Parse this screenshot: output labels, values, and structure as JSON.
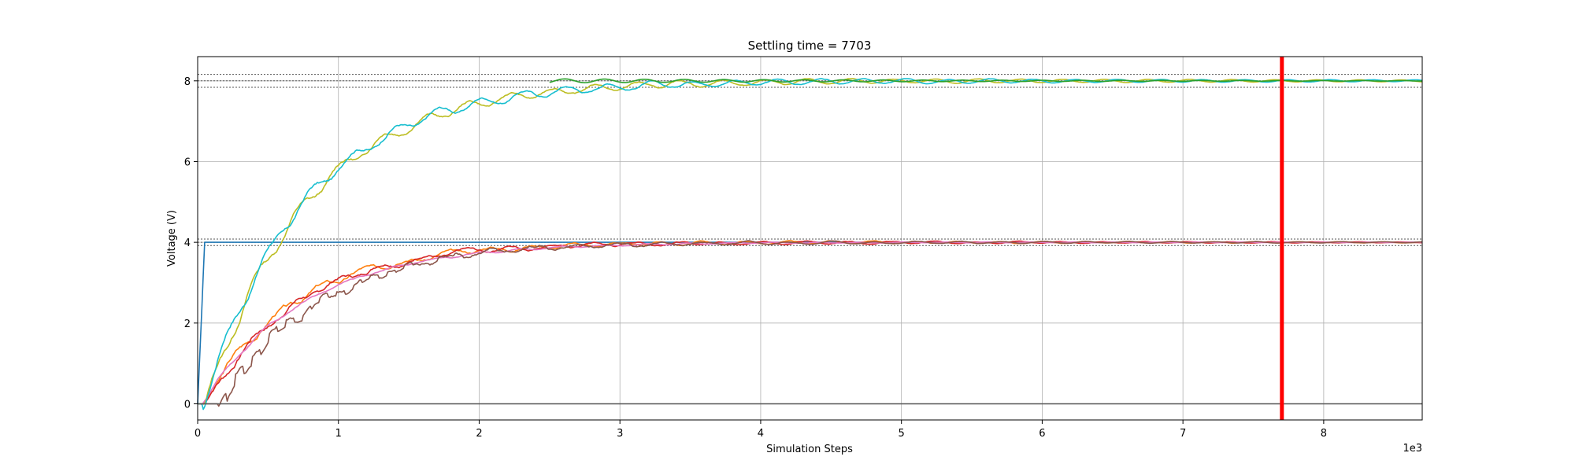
{
  "chart_data": {
    "type": "line",
    "title": "Settling time = 7703",
    "xlabel": "Simulation Steps",
    "ylabel": "Voltage (V)",
    "x_offset_label": "1e3",
    "xlim": [
      0,
      8700
    ],
    "ylim": [
      -0.4,
      8.6
    ],
    "x_ticks": [
      0,
      1000,
      2000,
      3000,
      4000,
      5000,
      6000,
      7000,
      8000
    ],
    "x_tick_labels": [
      "0",
      "1",
      "2",
      "3",
      "4",
      "5",
      "6",
      "7",
      "8"
    ],
    "y_ticks": [
      0,
      2,
      4,
      6,
      8
    ],
    "y_tick_labels": [
      "0",
      "2",
      "4",
      "6",
      "8"
    ],
    "grid": true,
    "settling_time": 7703,
    "settling_line_color": "#ff0000",
    "tolerance_bands": [
      {
        "target": 8,
        "lines": [
          7.84,
          8.0,
          8.16
        ]
      },
      {
        "target": 4,
        "lines": [
          3.92,
          4.0,
          4.08
        ]
      }
    ],
    "band_line_color": "#555555",
    "series": [
      {
        "color": "#1f77b4",
        "target": 4,
        "start": 0,
        "rise": 50,
        "shape": "step"
      },
      {
        "color": "#ff7f0e",
        "target": 4,
        "start": 40,
        "rise": 1700,
        "shape": "osc",
        "seed": 3
      },
      {
        "color": "#d62728",
        "target": 4,
        "start": 60,
        "rise": 1700,
        "shape": "osc",
        "seed": 7
      },
      {
        "color": "#e377c2",
        "target": 4,
        "start": 30,
        "rise": 1900,
        "shape": "smooth",
        "seed": 11
      },
      {
        "color": "#8c564b",
        "target": 4,
        "start": 150,
        "rise": 1800,
        "shape": "stair",
        "seed": 5
      },
      {
        "color": "#bcbd22",
        "target": 8,
        "start": 60,
        "rise": 1900,
        "shape": "osc",
        "seed": 13
      },
      {
        "color": "#17becf",
        "target": 8,
        "start": 40,
        "rise": 1900,
        "shape": "osc",
        "seed": 17
      },
      {
        "color": "#2ca02c",
        "target": 8,
        "start": 2500,
        "rise": 0,
        "shape": "tail",
        "seed": 19
      },
      {
        "color": "#555555",
        "target": 0,
        "start": 0,
        "rise": 0,
        "shape": "flat"
      }
    ]
  }
}
